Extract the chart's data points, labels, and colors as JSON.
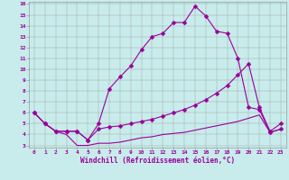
{
  "xlabel": "Windchill (Refroidissement éolien,°C)",
  "background_color": "#c8ecec",
  "grid_color": "#aaaaaa",
  "line_color": "#990099",
  "xlim": [
    -0.5,
    23.5
  ],
  "ylim": [
    2.8,
    16.2
  ],
  "xticks": [
    0,
    1,
    2,
    3,
    4,
    5,
    6,
    7,
    8,
    9,
    10,
    11,
    12,
    13,
    14,
    15,
    16,
    17,
    18,
    19,
    20,
    21,
    22,
    23
  ],
  "yticks": [
    3,
    4,
    5,
    6,
    7,
    8,
    9,
    10,
    11,
    12,
    13,
    14,
    15,
    16
  ],
  "line1_x": [
    0,
    1,
    2,
    3,
    4,
    5,
    6,
    7,
    8,
    9,
    10,
    11,
    12,
    13,
    14,
    15,
    16,
    17,
    18,
    19,
    20,
    21,
    22,
    23
  ],
  "line1_y": [
    6.0,
    5.0,
    4.3,
    4.3,
    4.3,
    3.5,
    5.0,
    8.2,
    9.3,
    10.3,
    11.8,
    13.0,
    13.3,
    14.3,
    14.3,
    15.8,
    14.9,
    13.5,
    13.3,
    11.0,
    6.5,
    6.3,
    4.2,
    4.5
  ],
  "line2_x": [
    0,
    1,
    2,
    3,
    4,
    5,
    6,
    7,
    8,
    9,
    10,
    11,
    12,
    13,
    14,
    15,
    16,
    17,
    18,
    19,
    20,
    21,
    22,
    23
  ],
  "line2_y": [
    6.0,
    5.0,
    4.3,
    4.3,
    4.3,
    3.5,
    4.5,
    4.7,
    4.8,
    5.0,
    5.2,
    5.4,
    5.7,
    6.0,
    6.3,
    6.7,
    7.2,
    7.8,
    8.5,
    9.5,
    10.5,
    6.5,
    4.3,
    5.0
  ],
  "line3_x": [
    0,
    1,
    2,
    3,
    4,
    5,
    6,
    7,
    8,
    9,
    10,
    11,
    12,
    13,
    14,
    15,
    16,
    17,
    18,
    19,
    20,
    21,
    22,
    23
  ],
  "line3_y": [
    6.0,
    5.0,
    4.3,
    4.0,
    3.0,
    3.0,
    3.2,
    3.2,
    3.3,
    3.5,
    3.7,
    3.8,
    4.0,
    4.1,
    4.2,
    4.4,
    4.6,
    4.8,
    5.0,
    5.2,
    5.5,
    5.8,
    4.2,
    4.5
  ],
  "marker_size": 2.5,
  "linewidth": 0.8,
  "tick_fontsize": 4.5,
  "xlabel_fontsize": 5.5
}
